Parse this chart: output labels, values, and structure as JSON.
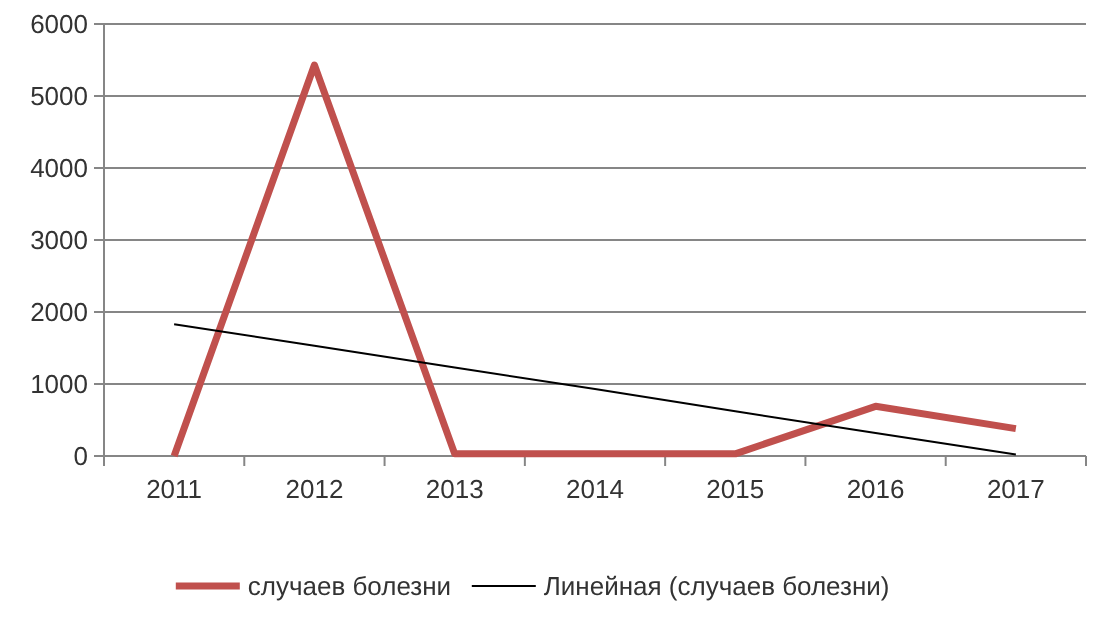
{
  "chart_data": {
    "type": "line",
    "categories": [
      "2011",
      "2012",
      "2013",
      "2014",
      "2015",
      "2016",
      "2017"
    ],
    "series": [
      {
        "name": "случаев болезни",
        "color": "#c0504d",
        "values": [
          0,
          5430,
          30,
          30,
          30,
          690,
          380
        ]
      },
      {
        "name": "Линейная (случаев болезни)",
        "color": "#000000",
        "values": [
          1830,
          1530,
          1230,
          930,
          620,
          320,
          20
        ]
      }
    ],
    "ylim": [
      0,
      6000
    ],
    "yticks": [
      0,
      1000,
      2000,
      3000,
      4000,
      5000,
      6000
    ],
    "grid": "y",
    "legend": "bottom",
    "marker": "none"
  }
}
